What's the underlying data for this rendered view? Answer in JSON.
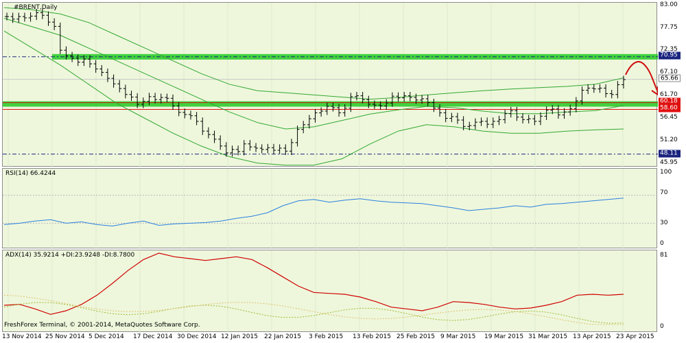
{
  "price_pane": {
    "symbol": "#BRENT,Daily",
    "axis_labels": [
      "83.00",
      "77.75",
      "72.35",
      "67.10",
      "61.70",
      "56.45",
      "51.20",
      "45.95"
    ],
    "tags": {
      "top_line": "70.95",
      "current": "65.66",
      "band_top": "60.18",
      "band_bottom": "58.60",
      "low_line": "48.11"
    }
  },
  "rsi_pane": {
    "label": "RSI(14) 66.4244",
    "axis_labels": [
      "100",
      "70",
      "30",
      "0"
    ]
  },
  "adx_pane": {
    "label": "ADX(14) 35.9214 +DI:23.9248 -DI:8.7800",
    "axis_labels": [
      "81",
      "0"
    ]
  },
  "dates": [
    "13 Nov 2014",
    "25 Nov 2014",
    "5 Dec 2014",
    "17 Dec 2014",
    "30 Dec 2014",
    "12 Jan 2015",
    "22 Jan 2015",
    "3 Feb 2015",
    "13 Feb 2015",
    "25 Feb 2015",
    "9 Mar 2015",
    "19 Mar 2015",
    "31 Mar 2015",
    "13 Apr 2015",
    "23 Apr 2015"
  ],
  "copyright": "FreshForex Terminal, © 2001-2014, MetaQuotes Software Corp.",
  "colors": {
    "background": "#eef7dc",
    "bollinger": "#32a832",
    "support_band": "#2ecc2e",
    "red_line": "#e01010",
    "rsi_line": "#2a7fe0",
    "adx_line": "#d00000",
    "plus_di": "#9db82e",
    "minus_di": "#e0c070",
    "tag_blue": "#1a237e"
  },
  "chart_data": {
    "type": "line",
    "ohlc_close": [
      80.4,
      79.8,
      80.4,
      80.1,
      80.5,
      81.3,
      80.7,
      79.1,
      78.1,
      72.5,
      71.2,
      70.6,
      69.7,
      70.4,
      69.3,
      68.1,
      67.3,
      65.9,
      64.6,
      63.5,
      62.1,
      61.5,
      59.8,
      60.5,
      61.6,
      60.9,
      61.4,
      61.2,
      59.4,
      57.9,
      57.4,
      57.1,
      55.8,
      53.5,
      52.7,
      51.6,
      50.0,
      48.4,
      49.2,
      48.7,
      50.5,
      49.8,
      49.5,
      49.2,
      49.6,
      49.0,
      49.5,
      48.8,
      50.8,
      53.9,
      55.0,
      56.4,
      57.8,
      58.2,
      59.3,
      59.0,
      57.8,
      58.9,
      61.6,
      61.8,
      60.9,
      59.8,
      59.6,
      59.4,
      60.1,
      61.7,
      61.3,
      61.8,
      61.4,
      60.8,
      61.1,
      60.2,
      58.9,
      57.8,
      56.5,
      56.9,
      56.1,
      54.6,
      54.8,
      55.6,
      55.8,
      55.1,
      55.8,
      56.2,
      57.6,
      58.3,
      56.8,
      56.2,
      56.4,
      55.8,
      57.0,
      58.4,
      58.7,
      57.3,
      58.0,
      58.8,
      60.6,
      63.1,
      63.6,
      63.4,
      63.6,
      62.3,
      62.1,
      64.4,
      65.6
    ],
    "bollinger_upper": [
      82.5,
      82.0,
      81.0,
      79.0,
      76.0,
      73.0,
      70.0,
      67.0,
      64.5,
      63.0,
      62.5,
      62.0,
      61.5,
      61.0,
      61.4,
      62.0,
      62.5,
      63.0,
      63.4,
      63.7,
      64.0,
      64.5,
      66.0
    ],
    "bollinger_mid": [
      80.0,
      78.0,
      76.0,
      73.0,
      70.0,
      67.0,
      64.0,
      61.0,
      58.0,
      55.5,
      54.0,
      54.5,
      56.0,
      57.5,
      58.5,
      59.3,
      59.0,
      58.2,
      57.6,
      57.6,
      58.0,
      58.3,
      59.5
    ],
    "bollinger_lower": [
      77.0,
      73.0,
      69.0,
      64.5,
      60.0,
      56.5,
      53.0,
      50.0,
      47.5,
      46.0,
      45.5,
      45.5,
      47.0,
      50.5,
      53.5,
      55.0,
      54.5,
      53.5,
      53.0,
      53.0,
      53.5,
      53.8,
      54.0
    ],
    "horizontal_lines": {
      "resistance": 70.95,
      "current": 65.66,
      "band_top": 60.18,
      "band_bottom": 58.6,
      "support": 48.11
    },
    "rsi": [
      28,
      30,
      33,
      35,
      30,
      32,
      28,
      26,
      30,
      33,
      27,
      29,
      30,
      31,
      33,
      37,
      40,
      45,
      55,
      62,
      64,
      60,
      63,
      65,
      62,
      60,
      59,
      58,
      55,
      52,
      48,
      50,
      52,
      55,
      53,
      57,
      58,
      60,
      62,
      64,
      66
    ],
    "adx": [
      24,
      25,
      20,
      14,
      18,
      25,
      35,
      48,
      62,
      74,
      81,
      77,
      75,
      73,
      75,
      77,
      74,
      65,
      55,
      45,
      38,
      37,
      36,
      33,
      28,
      22,
      20,
      18,
      22,
      28,
      27,
      25,
      22,
      20,
      21,
      24,
      28,
      35,
      36,
      35,
      36
    ],
    "rsi_ylim": [
      0,
      100
    ],
    "adx_ylim": [
      0,
      81
    ],
    "ylim": [
      45.95,
      83.0
    ]
  }
}
